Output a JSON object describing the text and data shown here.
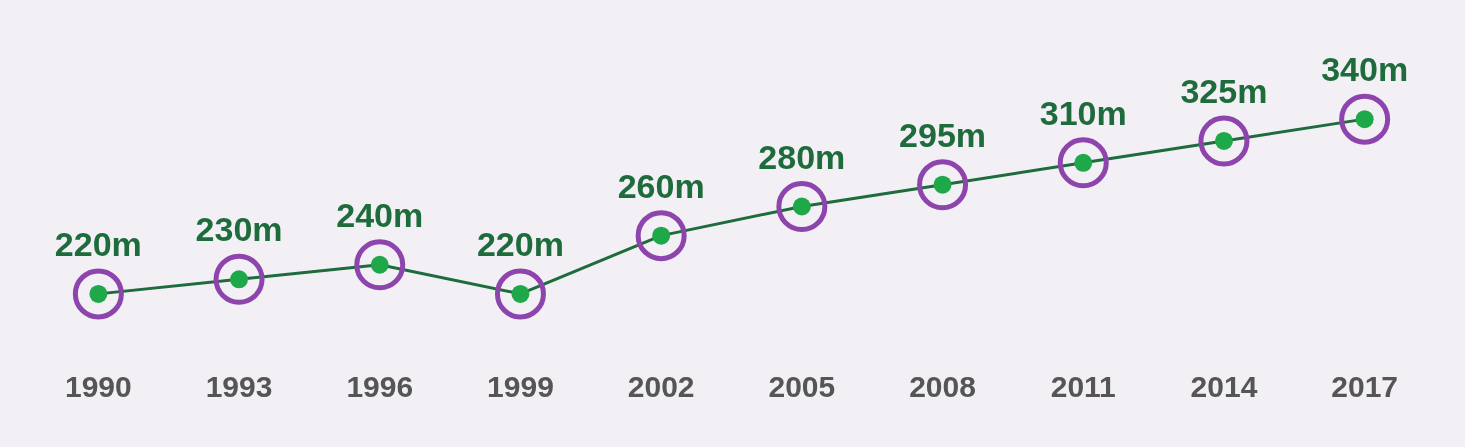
{
  "chart_data": {
    "type": "line",
    "categories": [
      "1990",
      "1993",
      "1996",
      "1999",
      "2002",
      "2005",
      "2008",
      "2011",
      "2014",
      "2017"
    ],
    "series": [
      {
        "color": "#1e6b3c",
        "values": [
          220,
          230,
          240,
          220,
          260,
          280,
          295,
          310,
          325,
          340
        ],
        "value_labels": [
          "220m",
          "230m",
          "240m",
          "220m",
          "260m",
          "280m",
          "295m",
          "310m",
          "325m",
          "340m"
        ]
      }
    ],
    "marker": "circle",
    "grid": false,
    "legend": false,
    "tick_labels": "x"
  }
}
